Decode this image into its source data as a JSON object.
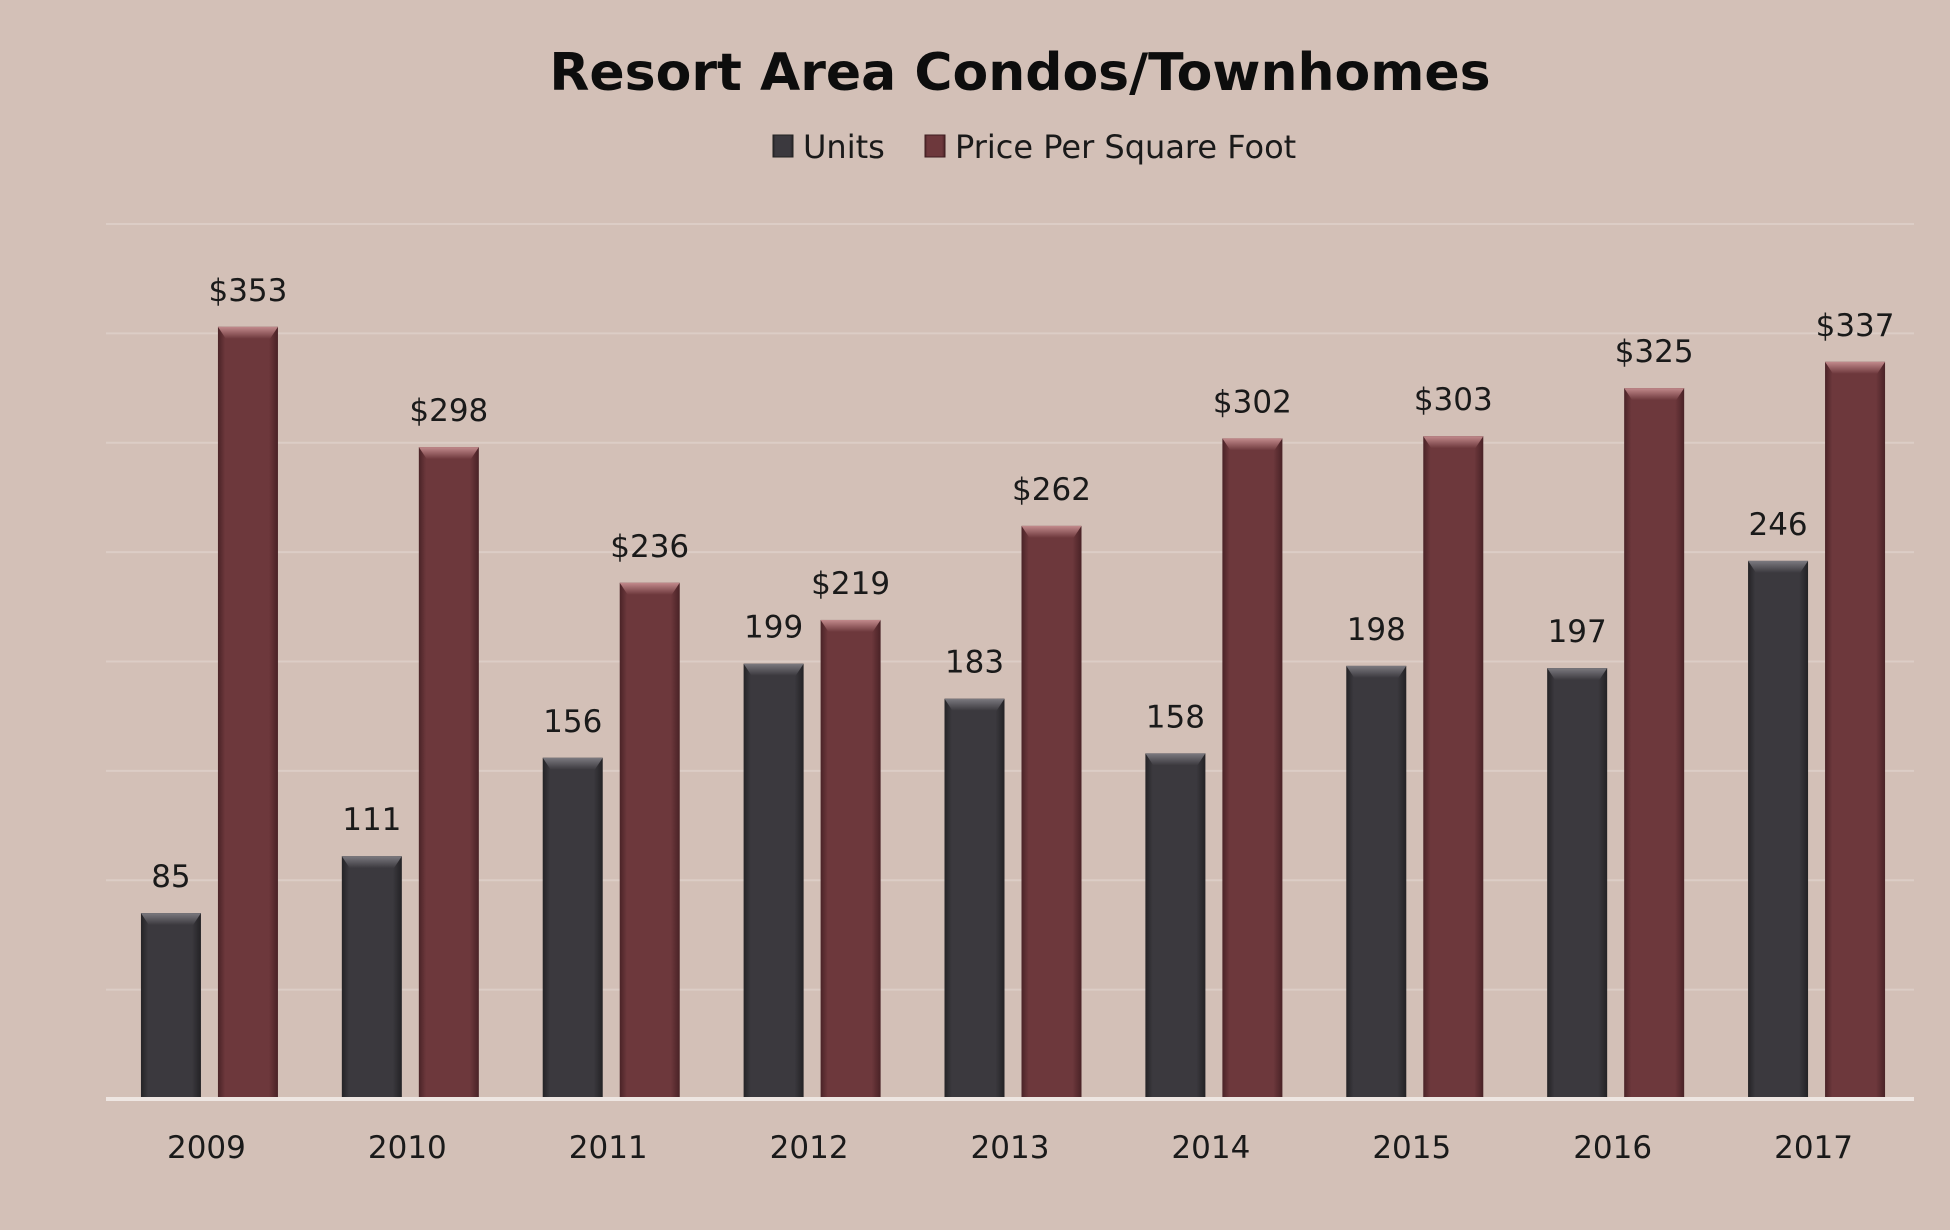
{
  "chart_data": {
    "type": "bar",
    "title": "Resort Area Condos/Townhomes",
    "categories": [
      "2009",
      "2010",
      "2011",
      "2012",
      "2013",
      "2014",
      "2015",
      "2016",
      "2017"
    ],
    "series": [
      {
        "name": "Units",
        "color": "#38363b",
        "values": [
          85,
          111,
          156,
          199,
          183,
          158,
          198,
          197,
          246
        ],
        "labels": [
          "85",
          "111",
          "156",
          "199",
          "183",
          "158",
          "198",
          "197",
          "246"
        ]
      },
      {
        "name": "Price Per Square Foot",
        "color": "#6b363a",
        "values": [
          353,
          298,
          236,
          219,
          262,
          302,
          303,
          325,
          337
        ],
        "labels": [
          "$353",
          "$298",
          "$236",
          "$219",
          "$262",
          "$302",
          "$303",
          "$325",
          "$337"
        ]
      }
    ],
    "xlabel": "",
    "ylabel": "",
    "ylim": [
      0,
      400
    ],
    "grid": true,
    "gridlines": 8,
    "legend": "top-center",
    "y_axis_visible": false
  }
}
